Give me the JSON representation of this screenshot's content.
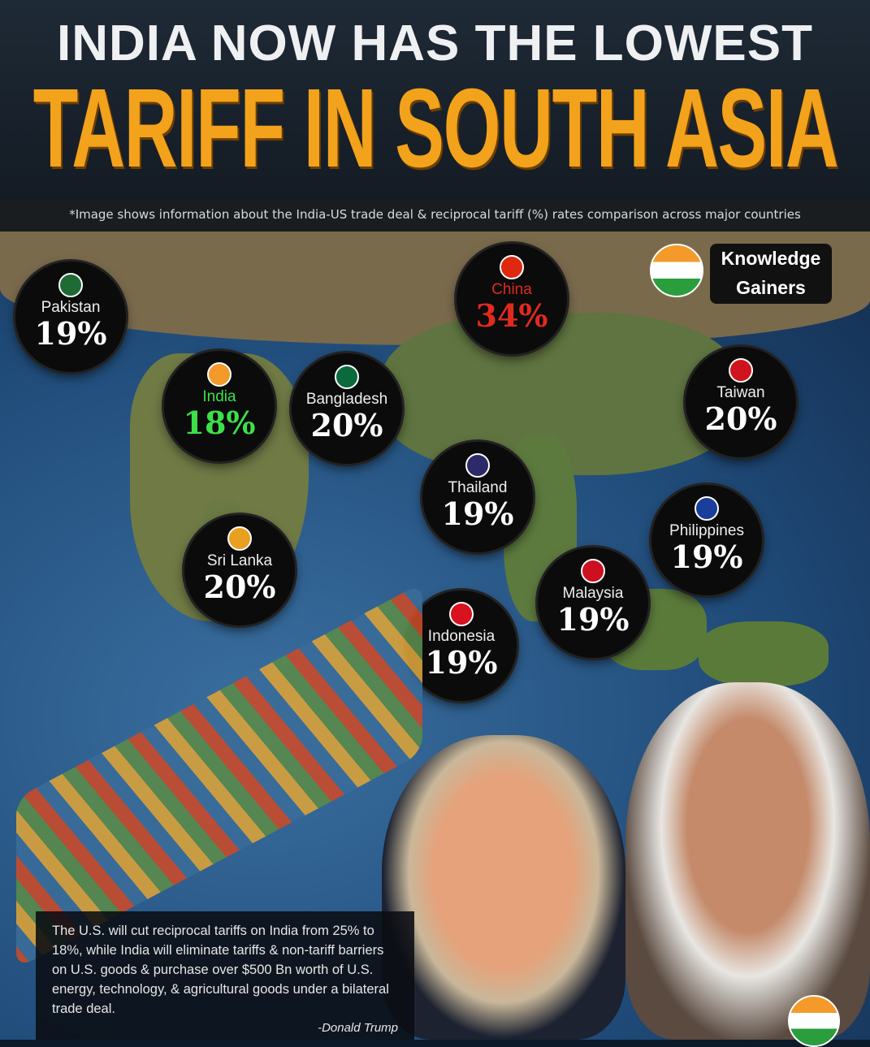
{
  "header": {
    "line1": "INDIA NOW HAS THE LOWEST",
    "line2": "TARIFF IN SOUTH ASIA",
    "note": "*Image shows information about the India-US trade deal & reciprocal tariff (%) rates comparison across major countries"
  },
  "brand": {
    "line1": "Knowledge",
    "line2": "Gainers"
  },
  "countries": [
    {
      "name": "Pakistan",
      "rate": "19%",
      "flag": "#1f6b35",
      "color": "#ffffff"
    },
    {
      "name": "India",
      "rate": "18%",
      "flag": "#f39a2b",
      "color": "#3ee04a"
    },
    {
      "name": "Bangladesh",
      "rate": "20%",
      "flag": "#0a6a3c",
      "color": "#ffffff"
    },
    {
      "name": "China",
      "rate": "34%",
      "flag": "#de2910",
      "color": "#e02a1e"
    },
    {
      "name": "Taiwan",
      "rate": "20%",
      "flag": "#d0141e",
      "color": "#ffffff"
    },
    {
      "name": "Thailand",
      "rate": "19%",
      "flag": "#2d2a6a",
      "color": "#ffffff"
    },
    {
      "name": "Sri Lanka",
      "rate": "20%",
      "flag": "#e8a020",
      "color": "#ffffff"
    },
    {
      "name": "Philippines",
      "rate": "19%",
      "flag": "#1a3f9a",
      "color": "#ffffff"
    },
    {
      "name": "Malaysia",
      "rate": "19%",
      "flag": "#cc1020",
      "color": "#ffffff"
    },
    {
      "name": "Indonesia",
      "rate": "19%",
      "flag": "#d8121e",
      "color": "#ffffff"
    }
  ],
  "quote": {
    "text": "The U.S. will cut reciprocal tariffs on India from 25% to 18%, while India will eliminate tariffs & non-tariff barriers on U.S. goods & purchase over $500 Bn worth of U.S. energy, technology, & agricultural goods under a bilateral trade deal.",
    "author": "-Donald Trump"
  }
}
